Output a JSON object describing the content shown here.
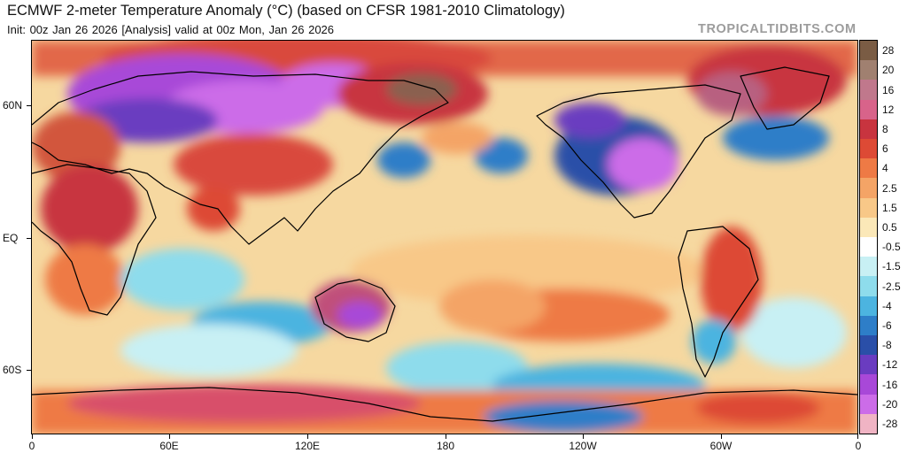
{
  "header": {
    "title": "ECMWF 2-meter Temperature Anomaly (°C) (based on CFSR 1981-2010 Climatology)",
    "subtitle": "Init: 00z Jan 26 2026   [Analysis]   valid at 00z Mon, Jan 26 2026",
    "watermark": "TROPICALTIDBITS.COM"
  },
  "map": {
    "lat_labels": [
      "60N",
      "EQ",
      "60S"
    ],
    "lon_labels": [
      "0",
      "60E",
      "120E",
      "180",
      "120W",
      "60W",
      "0"
    ]
  },
  "colorbar": {
    "labels": [
      "28",
      "20",
      "16",
      "12",
      "8",
      "6",
      "4",
      "2.5",
      "1.5",
      "0.5",
      "-0.5",
      "-1.5",
      "-2.5",
      "-4",
      "-6",
      "-8",
      "-12",
      "-16",
      "-20",
      "-28"
    ],
    "colors": [
      "#7a5c44",
      "#a08070",
      "#c0788c",
      "#d8638a",
      "#c8343f",
      "#dd4a35",
      "#ee7a45",
      "#f4a466",
      "#f8c888",
      "#fbe8b8",
      "#ffffff",
      "#c8f0f4",
      "#8edcec",
      "#4cb4e0",
      "#2e7ec8",
      "#2a4fa8",
      "#6a3cc0",
      "#a848d8",
      "#cc6ce8",
      "#f0b4c4"
    ]
  }
}
